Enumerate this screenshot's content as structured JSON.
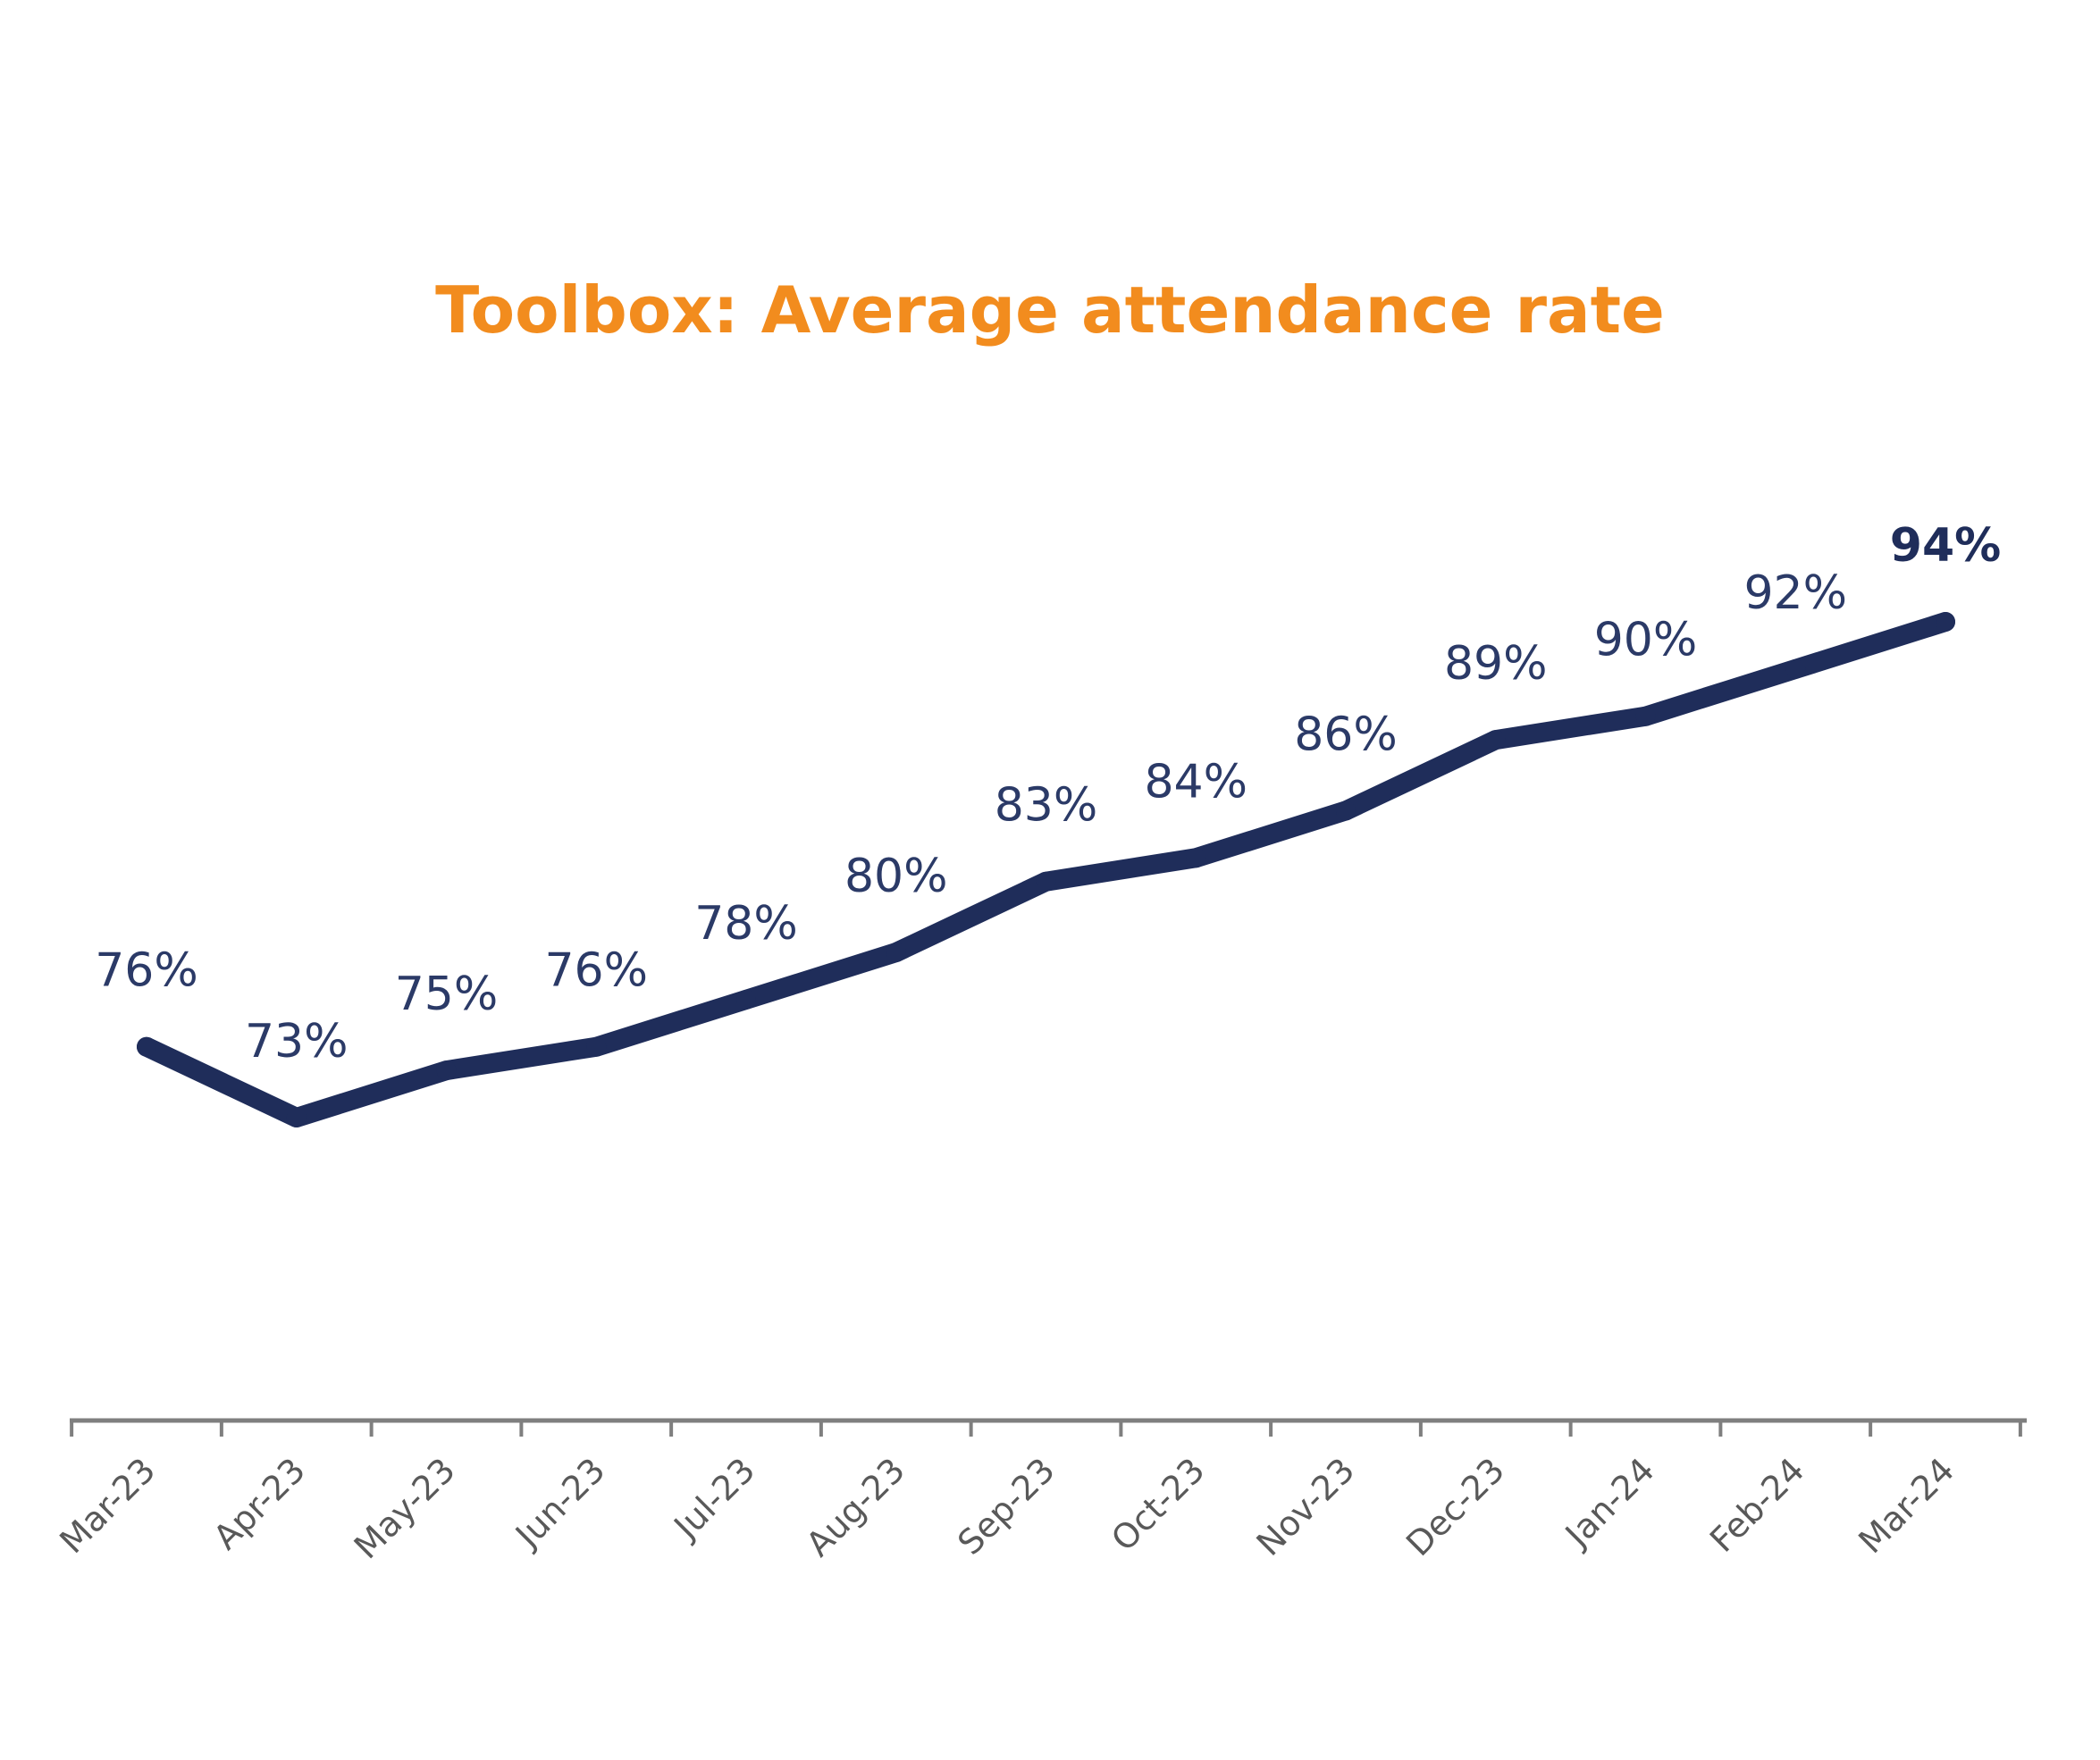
{
  "chart_data": {
    "type": "line",
    "title": "Toolbox: Average attendance rate",
    "xlabel": "",
    "ylabel": "",
    "categories": [
      "Mar-23",
      "Apr-23",
      "May-23",
      "Jun-23",
      "Jul-23",
      "Aug-23",
      "Sep-23",
      "Oct-23",
      "Nov-23",
      "Dec-23",
      "Jan-24",
      "Feb-24",
      "Mar-24"
    ],
    "series": [
      {
        "name": "Average attendance rate",
        "values": [
          76,
          73,
          75,
          76,
          78,
          80,
          83,
          84,
          86,
          89,
          90,
          92,
          94
        ],
        "labels": [
          "76%",
          "73%",
          "75%",
          "76%",
          "78%",
          "80%",
          "83%",
          "84%",
          "86%",
          "89%",
          "90%",
          "92%",
          "94%"
        ],
        "highlight_index": 12
      }
    ],
    "ylim": [
      60,
      96
    ],
    "grid": false,
    "legend": "none",
    "colors": {
      "title": "#F28C1E",
      "line": "#1F2D5A",
      "labels": "#2B3A67",
      "axis": "#7F7F7F",
      "ticks": "#595959"
    }
  }
}
